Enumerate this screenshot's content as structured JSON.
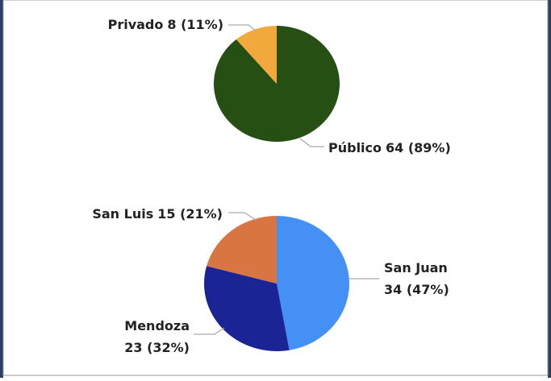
{
  "chart_data": [
    {
      "type": "pie",
      "categories": [
        "Público",
        "Privado"
      ],
      "values": [
        64,
        8
      ],
      "value_labels": [
        "64 (89%)",
        "8 (11%)"
      ],
      "colors": [
        "#264f13",
        "#f2a83a"
      ]
    },
    {
      "type": "pie",
      "categories": [
        "San Juan",
        "Mendoza",
        "San Luis"
      ],
      "values": [
        34,
        23,
        15
      ],
      "value_labels": [
        "34 (47%)",
        "23 (32%)",
        "15 (21%)"
      ],
      "colors": [
        "#4490f5",
        "#1a2495",
        "#d97443"
      ]
    }
  ]
}
